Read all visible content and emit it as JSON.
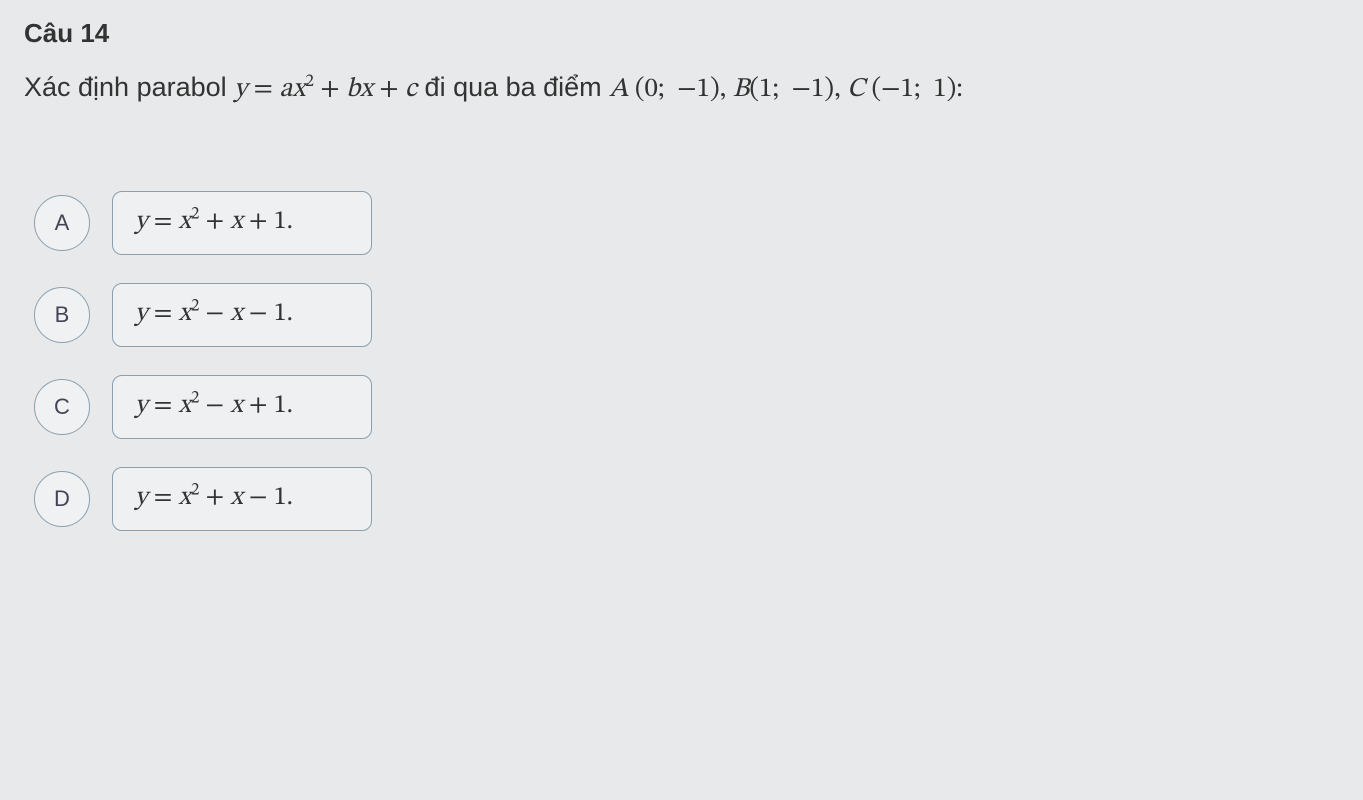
{
  "background_color": "#e8e9ea",
  "text_color": "#333333",
  "border_color": "#8aa0b0",
  "option_bg": "#eef0f1",
  "letter_bg": "#f0f1f2",
  "question": {
    "number": "Câu 14",
    "number_fontsize": 26,
    "prompt_fontsize": 27,
    "prompt": {
      "before": "Xác định parabol ",
      "formula": "y = ax² + bx + c",
      "mid": " đi qua ba điểm ",
      "points": "A(0;  −1), B(1;  −1), C(−1;  1):"
    }
  },
  "options": {
    "border_radius": 10,
    "letter_size": 56,
    "formula_min_width": 260,
    "formula_height": 64,
    "letter_fontsize": 22,
    "formula_fontsize": 26,
    "items": [
      {
        "letter": "A",
        "expr_text": "y = x² + x + 1."
      },
      {
        "letter": "B",
        "expr_text": "y = x² − x − 1."
      },
      {
        "letter": "C",
        "expr_text": "y = x² − x + 1."
      },
      {
        "letter": "D",
        "expr_text": "y = x² + x − 1."
      }
    ]
  }
}
